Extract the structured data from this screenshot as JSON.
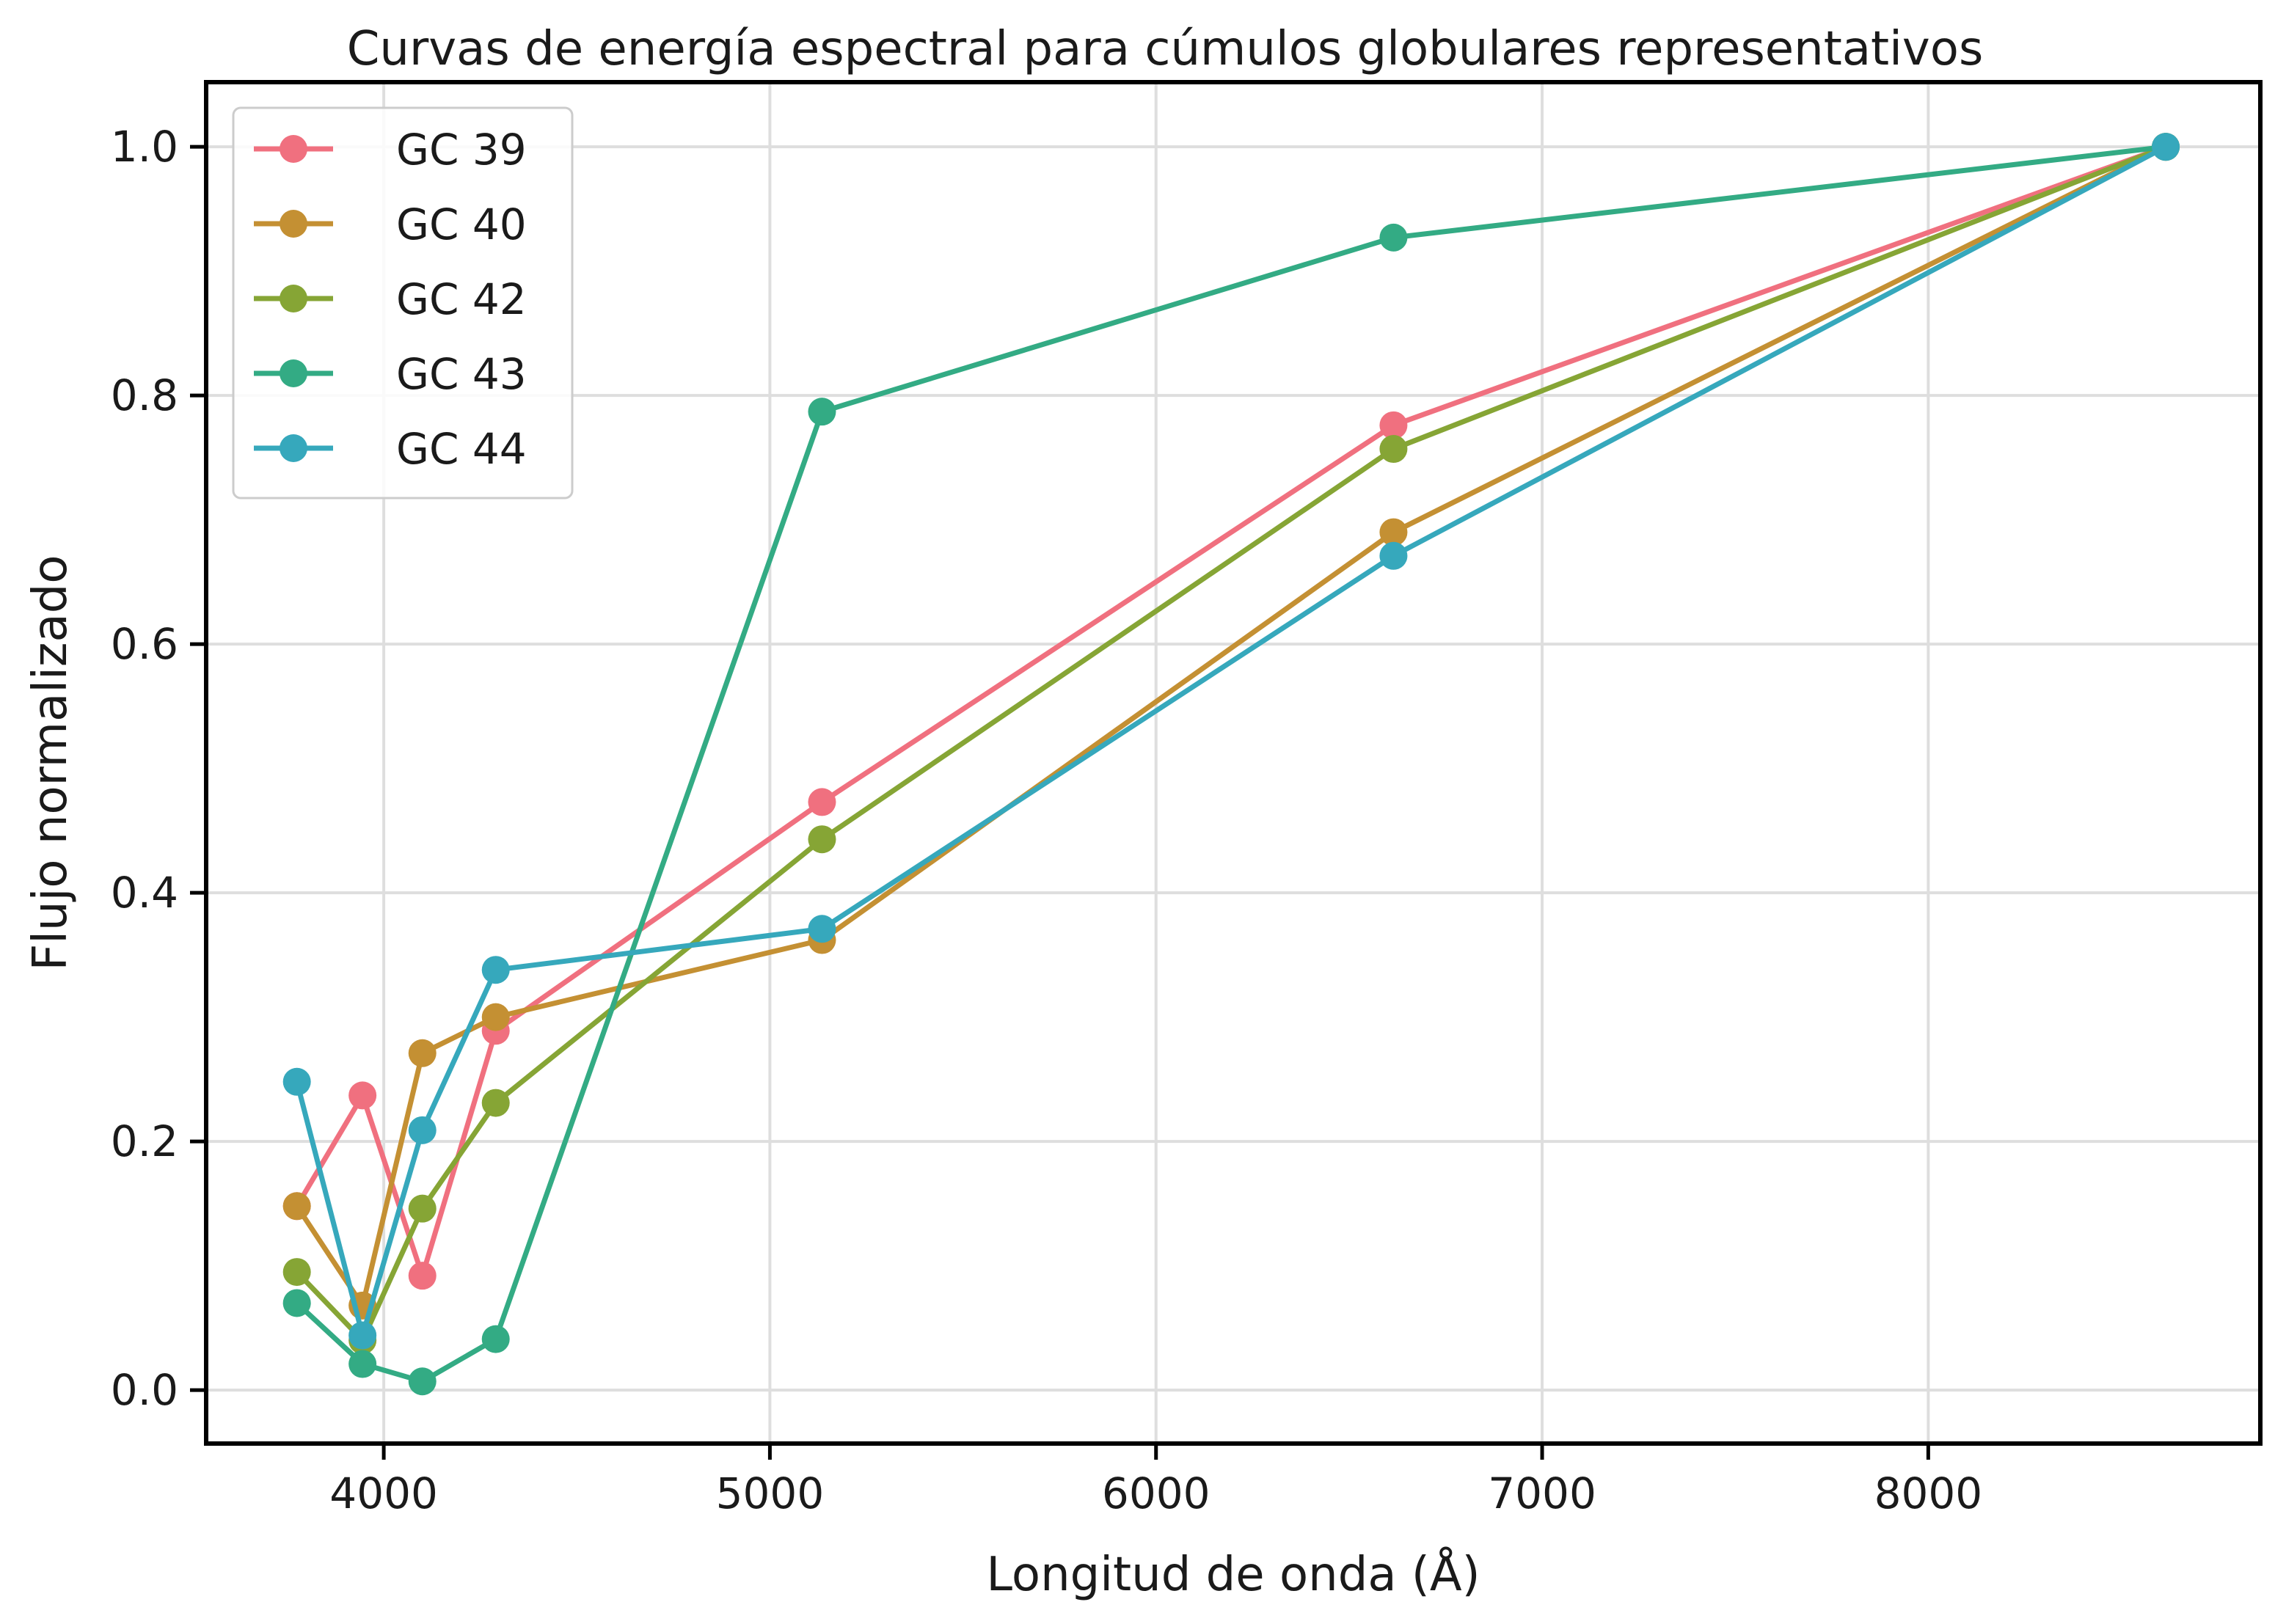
{
  "chart_data": {
    "type": "line",
    "title": "Curvas de energía espectral para cúmulos globulares representativos",
    "xlabel": "Longitud de onda (Å)",
    "ylabel": "Flujo normalizado",
    "xlim": [
      3540,
      8860
    ],
    "ylim": [
      -0.043,
      1.052
    ],
    "xticks": [
      4000,
      5000,
      6000,
      7000,
      8000
    ],
    "yticks": [
      0.0,
      0.2,
      0.4,
      0.6,
      0.8,
      1.0
    ],
    "xtick_labels": [
      "4000",
      "5000",
      "6000",
      "7000",
      "8000"
    ],
    "ytick_labels": [
      "0.0",
      "0.2",
      "0.4",
      "0.6",
      "0.8",
      "1.0"
    ],
    "grid": true,
    "legend_position": "top-left",
    "x": [
      3775,
      3945,
      4100,
      4290,
      5135,
      6615,
      8615
    ],
    "series": [
      {
        "name": "GC 39",
        "color": "#f0707f",
        "values": [
          0.148,
          0.237,
          0.092,
          0.289,
          0.473,
          0.776,
          1.0
        ]
      },
      {
        "name": "GC 40",
        "color": "#c49033",
        "values": [
          0.148,
          0.068,
          0.271,
          0.3,
          0.362,
          0.69,
          1.0
        ]
      },
      {
        "name": "GC 42",
        "color": "#86a535",
        "values": [
          0.095,
          0.04,
          0.146,
          0.231,
          0.443,
          0.757,
          1.0
        ]
      },
      {
        "name": "GC 43",
        "color": "#33ab84",
        "values": [
          0.07,
          0.021,
          0.007,
          0.041,
          0.787,
          0.927,
          1.0
        ]
      },
      {
        "name": "GC 44",
        "color": "#36a8bc",
        "values": [
          0.248,
          0.044,
          0.209,
          0.338,
          0.371,
          0.671,
          1.0
        ]
      }
    ]
  }
}
